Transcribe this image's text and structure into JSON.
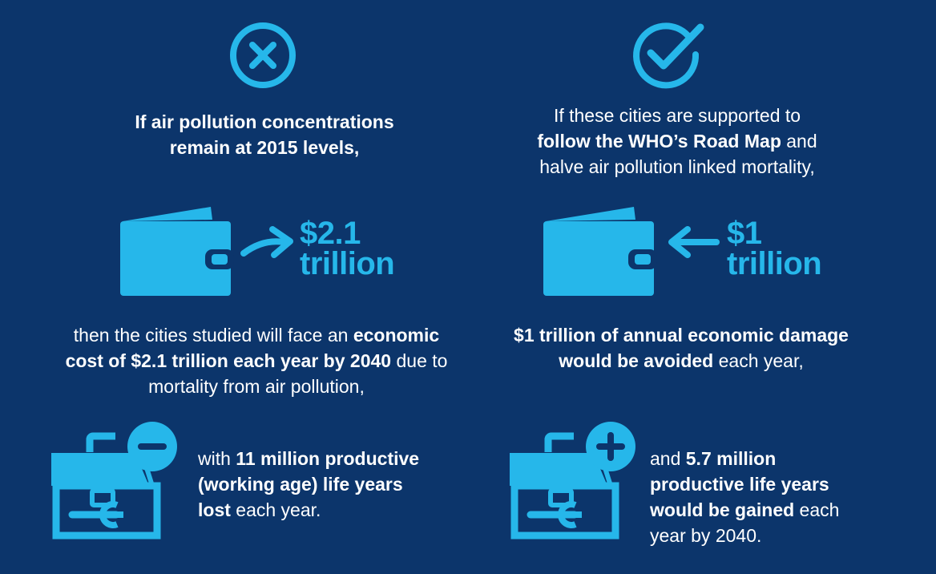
{
  "colors": {
    "background": "#0c356b",
    "accent": "#26b7ea",
    "text": "#ffffff"
  },
  "left": {
    "icon": "x-circle-icon",
    "intro": {
      "line1": "If air pollution concentrations",
      "line2": "remain at 2015 levels,"
    },
    "amount": {
      "line1": "$2.1",
      "line2": "trillion"
    },
    "outcome": {
      "l1_pre": "then the cities studied will face an ",
      "l1_bold": "economic",
      "l2_bold": "cost of $2.1 trillion each year by 2040",
      "l2_post": " due to",
      "l3": "mortality from air pollution,"
    },
    "life": {
      "l1_pre": "with ",
      "l1_bold": "11 million productive",
      "l2_bold": "(working age) life years",
      "l3_bold": "lost",
      "l3_post": " each year."
    }
  },
  "right": {
    "icon": "check-circle-icon",
    "intro": {
      "line1": "If these cities are supported to",
      "l2_bold": "follow the WHO’s Road Map",
      "l2_post": " and",
      "line3": "halve air pollution linked mortality,"
    },
    "amount": {
      "line1": "$1",
      "line2": "trillion"
    },
    "outcome": {
      "l1_bold": "$1 trillion of annual economic damage",
      "l2_bold": "would be avoided",
      "l2_post": " each year,"
    },
    "life": {
      "l1_pre": "and ",
      "l1_bold": "5.7 million",
      "l2_bold": "productive life years",
      "l3_bold": "would be gained",
      "l3_post": " each",
      "l4": "year by 2040."
    }
  }
}
